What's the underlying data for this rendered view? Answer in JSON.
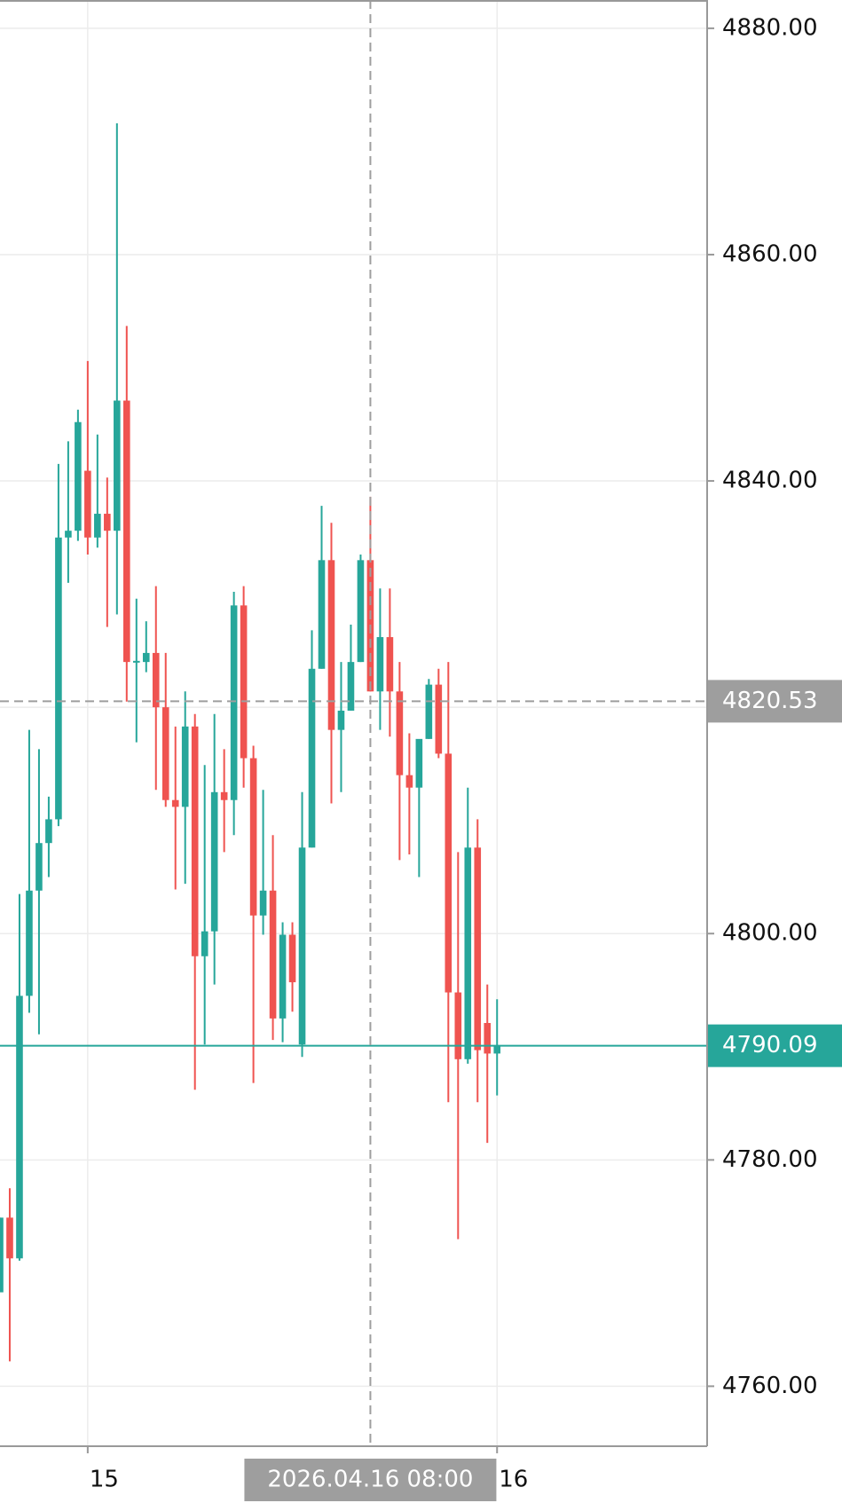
{
  "chart_data": {
    "type": "candlestick",
    "categories": [
      null,
      null,
      null,
      null,
      null,
      null,
      null,
      null,
      null,
      "15",
      null,
      null,
      null,
      null,
      null,
      null,
      null,
      null,
      null,
      null,
      null,
      null,
      null,
      null,
      null,
      null,
      null,
      null,
      null,
      null,
      null,
      null,
      null,
      null,
      null,
      null,
      null,
      null,
      "2026.04.16 08:00",
      null,
      null,
      null,
      null,
      null,
      null,
      null,
      null,
      null,
      null,
      null,
      null,
      "16"
    ],
    "open": [
      4768.3,
      4774.9,
      4771.3,
      4794.5,
      4803.8,
      4808.0,
      4810.1,
      4835.0,
      4835.6,
      4840.9,
      4835.0,
      4837.1,
      4835.6,
      4847.1,
      4824.0,
      4824.0,
      4824.8,
      4820.0,
      4811.8,
      4811.2,
      4818.3,
      4798.0,
      4800.2,
      4812.5,
      4811.8,
      4829.0,
      4815.5,
      4801.6,
      4803.8,
      4792.5,
      4799.9,
      4790.2,
      4807.6,
      4823.4,
      4833.0,
      4818.0,
      4819.7,
      4824.0,
      4833.0,
      4821.4,
      4826.2,
      4821.4,
      4814.0,
      4812.9,
      4817.2,
      4822.0,
      4815.9,
      4794.8,
      4788.9,
      4807.6,
      4792.1,
      4789.4
    ],
    "high": [
      4774.9,
      4777.5,
      4803.5,
      4818.0,
      4816.3,
      4812.1,
      4841.5,
      4843.5,
      4846.3,
      4850.6,
      4844.1,
      4840.3,
      4871.6,
      4853.7,
      4829.6,
      4827.6,
      4830.7,
      4824.8,
      4818.3,
      4821.4,
      4819.4,
      4814.9,
      4819.4,
      4816.3,
      4830.2,
      4830.7,
      4816.6,
      4812.7,
      4808.7,
      4801.0,
      4801.0,
      4812.5,
      4826.8,
      4837.8,
      4836.3,
      4824.0,
      4827.3,
      4833.5,
      4838.6,
      4830.5,
      4830.5,
      4824.0,
      4817.7,
      4816.3,
      4822.5,
      4823.4,
      4824.0,
      4807.2,
      4812.9,
      4810.1,
      4795.5,
      4794.2
    ],
    "low": [
      4768.3,
      4762.2,
      4771.1,
      4793.0,
      4791.1,
      4805.0,
      4809.5,
      4831.0,
      4834.7,
      4833.5,
      4834.1,
      4827.1,
      4828.2,
      4820.5,
      4816.9,
      4823.1,
      4812.7,
      4811.2,
      4803.9,
      4804.4,
      4786.2,
      4790.2,
      4795.5,
      4807.2,
      4808.7,
      4812.9,
      4786.8,
      4799.9,
      4790.6,
      4790.4,
      4793.1,
      4789.1,
      4807.6,
      4823.4,
      4811.5,
      4812.5,
      4819.7,
      4824.0,
      4821.4,
      4818.0,
      4817.4,
      4806.5,
      4807.0,
      4805.0,
      4817.2,
      4815.5,
      4785.1,
      4773.0,
      4788.5,
      4785.1,
      4781.5,
      4785.7
    ],
    "close": [
      4774.9,
      4771.3,
      4794.5,
      4803.8,
      4808.0,
      4810.1,
      4835.0,
      4835.6,
      4845.2,
      4835.0,
      4837.1,
      4835.6,
      4847.1,
      4824.0,
      4824.1,
      4824.8,
      4820.0,
      4811.8,
      4811.2,
      4818.3,
      4798.0,
      4800.2,
      4812.5,
      4811.8,
      4829.0,
      4815.5,
      4801.6,
      4803.8,
      4792.5,
      4799.9,
      4795.7,
      4807.6,
      4823.4,
      4833.0,
      4818.0,
      4819.7,
      4824.0,
      4833.0,
      4821.4,
      4826.2,
      4821.4,
      4814.0,
      4812.9,
      4817.2,
      4822.0,
      4815.9,
      4794.8,
      4788.9,
      4807.6,
      4789.7,
      4789.4,
      4790.09
    ],
    "up_color": "#26a69a",
    "down_color": "#ef5350",
    "ylim": [
      4754.7,
      4882.5
    ],
    "yticks": [
      {
        "value": 4760,
        "label": "4760.00"
      },
      {
        "value": 4780,
        "label": "4780.00"
      },
      {
        "value": 4800,
        "label": "4800.00"
      },
      {
        "value": 4820,
        "label": "4820.00"
      },
      {
        "value": 4840,
        "label": "4840.00"
      },
      {
        "value": 4860,
        "label": "4860.00"
      },
      {
        "value": 4880,
        "label": "4880.00"
      }
    ],
    "grid": true,
    "crosshair": {
      "y": 4820.53,
      "color": "#9e9e9e"
    }
  }
}
